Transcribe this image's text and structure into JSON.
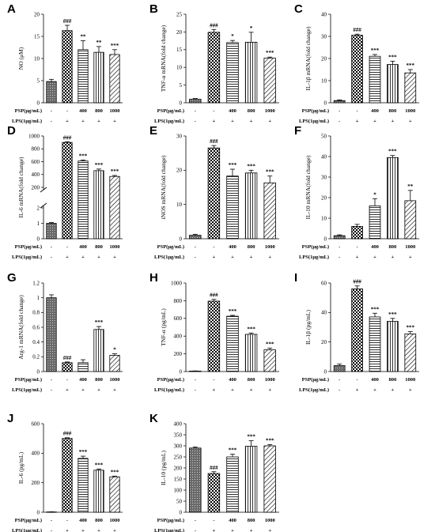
{
  "rows": {
    "psp_label": "PSP(μg/mL)",
    "lps_label": "LPS(1μg/mL)",
    "psp_values": [
      "-",
      "-",
      "400",
      "800",
      "1000"
    ],
    "lps_values": [
      "-",
      "+",
      "+",
      "+",
      "+"
    ]
  },
  "chart_data": [
    {
      "id": "A",
      "type": "bar",
      "panel_label": "A",
      "ylabel": "NO (μM)",
      "ylim": [
        0,
        20
      ],
      "yticks": [
        0,
        5,
        10,
        15,
        20
      ],
      "values": [
        4.8,
        16.3,
        12.0,
        11.4,
        10.9
      ],
      "errors": [
        0.5,
        1.2,
        2.0,
        1.3,
        1.1
      ],
      "significance": [
        "",
        "###",
        "**",
        "**",
        "***"
      ]
    },
    {
      "id": "B",
      "type": "bar",
      "panel_label": "B",
      "ylabel": "TNF-α mRNA(fold change)",
      "ylim": [
        0,
        25
      ],
      "yticks": [
        0,
        5,
        10,
        15,
        20,
        25
      ],
      "values": [
        1.0,
        19.9,
        17.0,
        17.1,
        12.6
      ],
      "errors": [
        0.2,
        0.8,
        0.6,
        2.8,
        0.3
      ],
      "significance": [
        "",
        "###",
        "*",
        "*",
        "***"
      ]
    },
    {
      "id": "C",
      "type": "bar",
      "panel_label": "C",
      "ylabel": "IL-1β mRNA(fold change)",
      "ylim": [
        0,
        40
      ],
      "yticks": [
        0,
        10,
        20,
        30,
        40
      ],
      "values": [
        1.0,
        30.5,
        21.0,
        17.3,
        13.5
      ],
      "errors": [
        0.3,
        0.5,
        0.8,
        1.5,
        1.5
      ],
      "significance": [
        "",
        "###",
        "***",
        "***",
        "***"
      ]
    },
    {
      "id": "D",
      "type": "bar",
      "panel_label": "D",
      "ylabel": "IL-6 mRNA(fold change)",
      "broken_axis": true,
      "yticks": [
        0,
        1,
        2,
        200,
        400,
        600,
        800,
        1000
      ],
      "values": [
        1.0,
        900,
        610,
        460,
        370
      ],
      "errors": [
        0.05,
        10,
        15,
        25,
        15
      ],
      "significance": [
        "",
        "###",
        "***",
        "***",
        "***"
      ]
    },
    {
      "id": "E",
      "type": "bar",
      "panel_label": "E",
      "ylabel": "iNOS mRNA(fold change)",
      "ylim": [
        0,
        30
      ],
      "yticks": [
        0,
        10,
        20,
        30
      ],
      "values": [
        1.0,
        26.5,
        18.3,
        19.2,
        16.3
      ],
      "errors": [
        0.3,
        0.7,
        2.0,
        0.8,
        2.0
      ],
      "significance": [
        "",
        "###",
        "***",
        "***",
        "***"
      ]
    },
    {
      "id": "F",
      "type": "bar",
      "panel_label": "F",
      "ylabel": "IL-10 mRNA(fold change)",
      "ylim": [
        0,
        50
      ],
      "yticks": [
        0,
        10,
        20,
        30,
        40,
        50
      ],
      "values": [
        1.5,
        6.0,
        16.0,
        39.5,
        18.5
      ],
      "errors": [
        0.4,
        1.0,
        3.5,
        1.0,
        5.0
      ],
      "significance": [
        "",
        "",
        "*",
        "***",
        "**"
      ]
    },
    {
      "id": "G",
      "type": "bar",
      "panel_label": "G",
      "ylabel": "Arg-1 mRNA(fold change)",
      "ylim": [
        0,
        1.2
      ],
      "yticks": [
        0.0,
        0.2,
        0.4,
        0.6,
        0.8,
        1.0,
        1.2
      ],
      "values": [
        1.0,
        0.12,
        0.12,
        0.57,
        0.22
      ],
      "errors": [
        0.04,
        0.01,
        0.04,
        0.04,
        0.02
      ],
      "significance": [
        "",
        "###",
        "",
        "***",
        "*"
      ]
    },
    {
      "id": "H",
      "type": "bar",
      "panel_label": "H",
      "ylabel": "TNF-α (pg/mL)",
      "ylim": [
        0,
        1000
      ],
      "yticks": [
        0,
        200,
        400,
        600,
        800,
        1000
      ],
      "values": [
        5,
        795,
        625,
        420,
        245
      ],
      "errors": [
        2,
        20,
        10,
        15,
        20
      ],
      "significance": [
        "",
        "###",
        "***",
        "***",
        "***"
      ]
    },
    {
      "id": "I",
      "type": "bar",
      "panel_label": "I",
      "ylabel": "IL-1β (pg/mL)",
      "ylim": [
        0,
        60
      ],
      "yticks": [
        0,
        20,
        40,
        60
      ],
      "values": [
        4,
        56,
        37,
        34,
        25.5
      ],
      "errors": [
        1,
        2,
        2.5,
        2,
        1.5
      ],
      "significance": [
        "",
        "###",
        "***",
        "***",
        "***"
      ]
    },
    {
      "id": "J",
      "type": "bar",
      "panel_label": "J",
      "ylabel": "IL-6 (pg/mL)",
      "ylim": [
        0,
        600
      ],
      "yticks": [
        0,
        200,
        400,
        600
      ],
      "values": [
        2,
        500,
        365,
        285,
        240
      ],
      "errors": [
        1,
        5,
        15,
        8,
        5
      ],
      "significance": [
        "",
        "###",
        "***",
        "***",
        "***"
      ]
    },
    {
      "id": "K",
      "type": "bar",
      "panel_label": "K",
      "ylabel": "IL-10 (pg/mL)",
      "ylim": [
        0,
        400
      ],
      "yticks": [
        0,
        50,
        100,
        150,
        200,
        250,
        300,
        350,
        400
      ],
      "values": [
        290,
        175,
        250,
        298,
        300
      ],
      "errors": [
        5,
        8,
        12,
        25,
        5
      ],
      "significance": [
        "",
        "###",
        "***",
        "***",
        "***"
      ]
    }
  ]
}
